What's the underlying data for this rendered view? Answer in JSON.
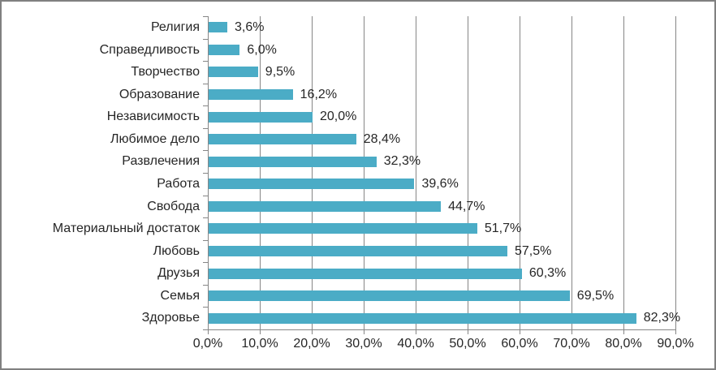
{
  "chart_data": {
    "type": "bar",
    "orientation": "horizontal",
    "title": "",
    "xlabel": "",
    "ylabel": "",
    "legend": false,
    "grid": true,
    "categories": [
      "Религия",
      "Справедливость",
      "Творчество",
      "Образование",
      "Независимость",
      "Любимое дело",
      "Развлечения",
      "Работа",
      "Свобода",
      "Материальный достаток",
      "Любовь",
      "Друзья",
      "Семья",
      "Здоровье"
    ],
    "values": [
      3.6,
      6.0,
      9.5,
      16.2,
      20.0,
      28.4,
      32.3,
      39.6,
      44.7,
      51.7,
      57.5,
      60.3,
      69.5,
      82.3
    ],
    "data_labels": [
      "3,6%",
      "6,0%",
      "9,5%",
      "16,2%",
      "20,0%",
      "28,4%",
      "32,3%",
      "39,6%",
      "44,7%",
      "51,7%",
      "57,5%",
      "60,3%",
      "69,5%",
      "82,3%"
    ],
    "x_axis": {
      "min": 0,
      "max": 90,
      "step": 10,
      "ticks": [
        "0,0%",
        "10,0%",
        "20,0%",
        "30,0%",
        "40,0%",
        "50,0%",
        "60,0%",
        "70,0%",
        "80,0%",
        "90,0%"
      ]
    },
    "colors": {
      "bar": "#4BACC6",
      "gridline": "#868686",
      "axis": "#868686",
      "text": "#262626",
      "frame_border": "#808080",
      "background": "#FFFFFF"
    }
  }
}
